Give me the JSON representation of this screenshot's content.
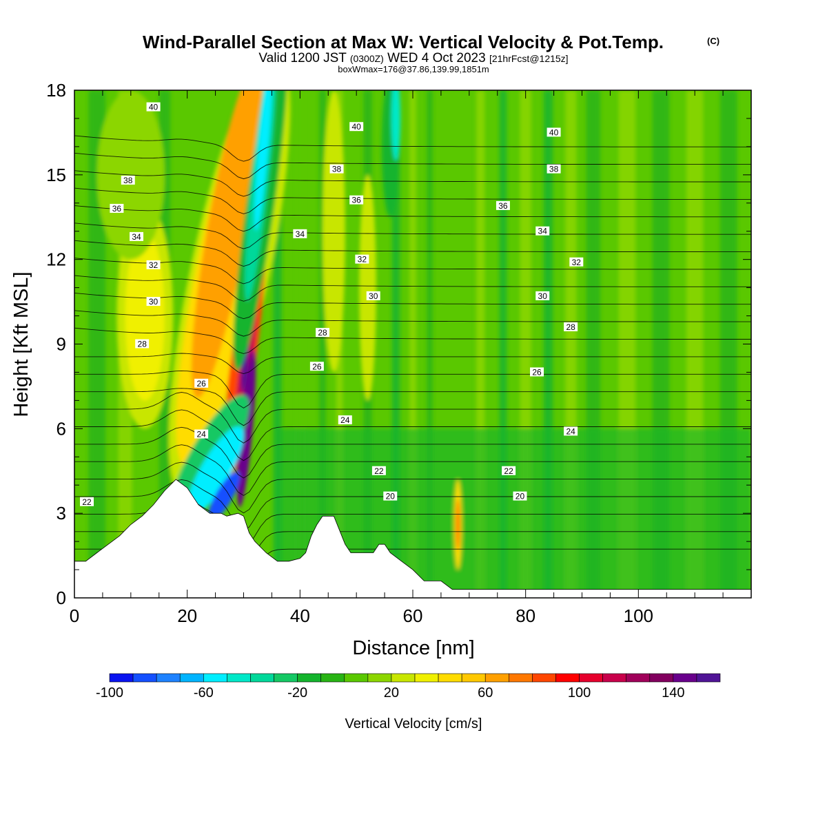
{
  "chart_data": {
    "type": "heatmap",
    "title": "Wind-Parallel Section at Max W: Vertical Velocity & Pot.Temp.",
    "title_mark": "(C)",
    "subtitle_parts": [
      "Valid 1200 JST",
      "(0300Z)",
      "WED 4 Oct 2023",
      "[21hrFcst@1215z]"
    ],
    "subtitle2": "boxWmax=176@37.86,139.99,1851m",
    "xlabel": "Distance [nm]",
    "ylabel": "Height [Kft MSL]",
    "xlim": [
      0,
      120
    ],
    "ylim": [
      0,
      18
    ],
    "xticks": [
      0,
      20,
      40,
      60,
      80,
      100
    ],
    "yticks": [
      0,
      3,
      6,
      9,
      12,
      15,
      18
    ],
    "colorbar": {
      "label": "Vertical Velocity [cm/s]",
      "levels": [
        -100,
        -90,
        -80,
        -70,
        -60,
        -50,
        -40,
        -30,
        -20,
        -10,
        0,
        10,
        20,
        30,
        40,
        50,
        60,
        70,
        80,
        90,
        100,
        110,
        120,
        130,
        140,
        150,
        160
      ],
      "tick_labels": [
        -100,
        -60,
        -20,
        20,
        60,
        100,
        140
      ],
      "colors": [
        "#0a14f0",
        "#1450ff",
        "#1e82ff",
        "#00b4ff",
        "#00eeff",
        "#00e8c8",
        "#00d89a",
        "#14c864",
        "#14b42d",
        "#28b414",
        "#5ac800",
        "#8cd600",
        "#c8e600",
        "#f0f000",
        "#ffdc00",
        "#ffc800",
        "#ffa000",
        "#ff7800",
        "#ff4600",
        "#ff0000",
        "#e6002d",
        "#c8004b",
        "#a0005a",
        "#82005f",
        "#69008c",
        "#501496"
      ]
    },
    "updraft_features": [
      {
        "x": 26,
        "height_kft": 13,
        "w_cm_s": 70
      },
      {
        "x": 30.5,
        "height_kft": 4.6,
        "w_cm_s": 176
      },
      {
        "x": 30.3,
        "height_kft": 8.5,
        "w_cm_s": 140
      },
      {
        "x": 12.5,
        "height_kft": 10,
        "w_cm_s": 50
      },
      {
        "x": 68,
        "height_kft": 2.5,
        "w_cm_s": 70
      }
    ],
    "downdraft_features": [
      {
        "x": 33,
        "height_kft": 15,
        "w_cm_s": -50
      },
      {
        "x": 26,
        "height_kft": 4,
        "w_cm_s": -90
      },
      {
        "x": 22,
        "height_kft": 6,
        "w_cm_s": -55
      }
    ],
    "theta_contour_levels": [
      20,
      22,
      24,
      26,
      28,
      30,
      32,
      34,
      36,
      38,
      40
    ],
    "theta_labels": [
      {
        "v": "40",
        "x": 14,
        "y": 17.4
      },
      {
        "v": "40",
        "x": 50,
        "y": 16.7
      },
      {
        "v": "40",
        "x": 85,
        "y": 16.5
      },
      {
        "v": "38",
        "x": 9.5,
        "y": 14.8
      },
      {
        "v": "38",
        "x": 46.5,
        "y": 15.2
      },
      {
        "v": "38",
        "x": 85,
        "y": 15.2
      },
      {
        "v": "36",
        "x": 7.5,
        "y": 13.8
      },
      {
        "v": "36",
        "x": 50,
        "y": 14.1
      },
      {
        "v": "36",
        "x": 76,
        "y": 13.9
      },
      {
        "v": "34",
        "x": 11,
        "y": 12.8
      },
      {
        "v": "34",
        "x": 40,
        "y": 12.9
      },
      {
        "v": "34",
        "x": 83,
        "y": 13.0
      },
      {
        "v": "32",
        "x": 14,
        "y": 11.8
      },
      {
        "v": "32",
        "x": 51,
        "y": 12.0
      },
      {
        "v": "32",
        "x": 89,
        "y": 11.9
      },
      {
        "v": "30",
        "x": 14,
        "y": 10.5
      },
      {
        "v": "30",
        "x": 53,
        "y": 10.7
      },
      {
        "v": "30",
        "x": 83,
        "y": 10.7
      },
      {
        "v": "28",
        "x": 12,
        "y": 9.0
      },
      {
        "v": "28",
        "x": 44,
        "y": 9.4
      },
      {
        "v": "28",
        "x": 88,
        "y": 9.6
      },
      {
        "v": "26",
        "x": 22.5,
        "y": 7.6
      },
      {
        "v": "26",
        "x": 43,
        "y": 8.2
      },
      {
        "v": "26",
        "x": 82,
        "y": 8.0
      },
      {
        "v": "24",
        "x": 22.5,
        "y": 5.8
      },
      {
        "v": "24",
        "x": 48,
        "y": 6.3
      },
      {
        "v": "24",
        "x": 88,
        "y": 5.9
      },
      {
        "v": "22",
        "x": 2.2,
        "y": 3.4
      },
      {
        "v": "22",
        "x": 54,
        "y": 4.5
      },
      {
        "v": "22",
        "x": 77,
        "y": 4.5
      },
      {
        "v": "20",
        "x": 56,
        "y": 3.6
      },
      {
        "v": "20",
        "x": 79,
        "y": 3.6
      }
    ],
    "terrain": [
      {
        "x": 0,
        "y": 1.3
      },
      {
        "x": 2,
        "y": 1.3
      },
      {
        "x": 4,
        "y": 1.6
      },
      {
        "x": 6,
        "y": 1.9
      },
      {
        "x": 8,
        "y": 2.2
      },
      {
        "x": 10,
        "y": 2.6
      },
      {
        "x": 12,
        "y": 2.9
      },
      {
        "x": 14,
        "y": 3.3
      },
      {
        "x": 16,
        "y": 3.8
      },
      {
        "x": 18,
        "y": 4.2
      },
      {
        "x": 20,
        "y": 3.9
      },
      {
        "x": 22,
        "y": 3.3
      },
      {
        "x": 24,
        "y": 3.0
      },
      {
        "x": 26,
        "y": 3.0
      },
      {
        "x": 27,
        "y": 2.9
      },
      {
        "x": 29,
        "y": 3.0
      },
      {
        "x": 30,
        "y": 2.9
      },
      {
        "x": 31,
        "y": 2.3
      },
      {
        "x": 32,
        "y": 2.0
      },
      {
        "x": 34,
        "y": 1.6
      },
      {
        "x": 36,
        "y": 1.3
      },
      {
        "x": 38,
        "y": 1.3
      },
      {
        "x": 40,
        "y": 1.4
      },
      {
        "x": 41,
        "y": 1.6
      },
      {
        "x": 42,
        "y": 2.2
      },
      {
        "x": 43,
        "y": 2.6
      },
      {
        "x": 44,
        "y": 2.9
      },
      {
        "x": 46,
        "y": 2.9
      },
      {
        "x": 47,
        "y": 2.4
      },
      {
        "x": 48,
        "y": 1.9
      },
      {
        "x": 49,
        "y": 1.6
      },
      {
        "x": 53,
        "y": 1.6
      },
      {
        "x": 54,
        "y": 1.9
      },
      {
        "x": 55,
        "y": 1.9
      },
      {
        "x": 56,
        "y": 1.6
      },
      {
        "x": 58,
        "y": 1.3
      },
      {
        "x": 60,
        "y": 1.0
      },
      {
        "x": 62,
        "y": 0.6
      },
      {
        "x": 65,
        "y": 0.6
      },
      {
        "x": 67,
        "y": 0.3
      },
      {
        "x": 70,
        "y": 0.3
      },
      {
        "x": 120,
        "y": 0.3
      }
    ]
  }
}
